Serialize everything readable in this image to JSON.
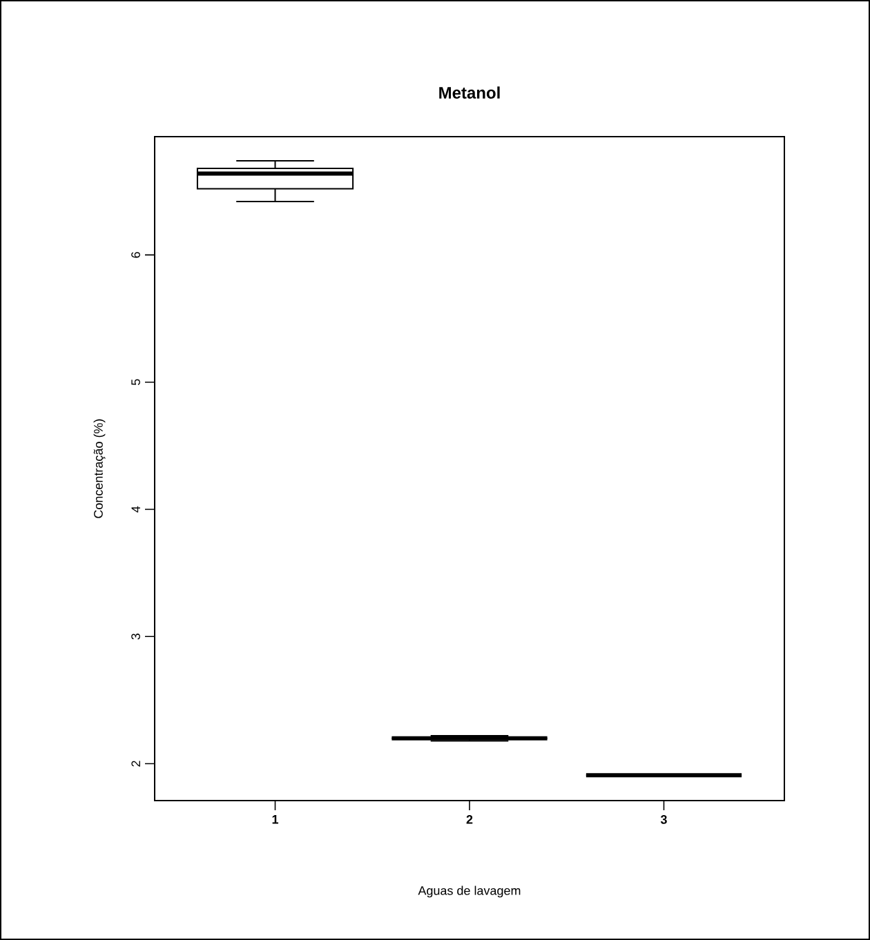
{
  "chart_data": {
    "type": "box",
    "title": "Metanol",
    "xlabel": "Aguas de lavagem",
    "ylabel": "Concentração (%)",
    "categories": [
      "1",
      "2",
      "3"
    ],
    "boxes": [
      {
        "low": 6.42,
        "q1": 6.52,
        "median": 6.64,
        "q3": 6.68,
        "high": 6.74
      },
      {
        "low": 2.18,
        "q1": 2.2,
        "median": 2.2,
        "q3": 2.2,
        "high": 2.22
      },
      {
        "low": 1.91,
        "q1": 1.91,
        "median": 1.91,
        "q3": 1.91,
        "high": 1.91
      }
    ],
    "color": "#000000",
    "ylim": [
      1.71,
      6.93
    ],
    "yticks": [
      2,
      3,
      4,
      5,
      6
    ],
    "grid": false
  }
}
